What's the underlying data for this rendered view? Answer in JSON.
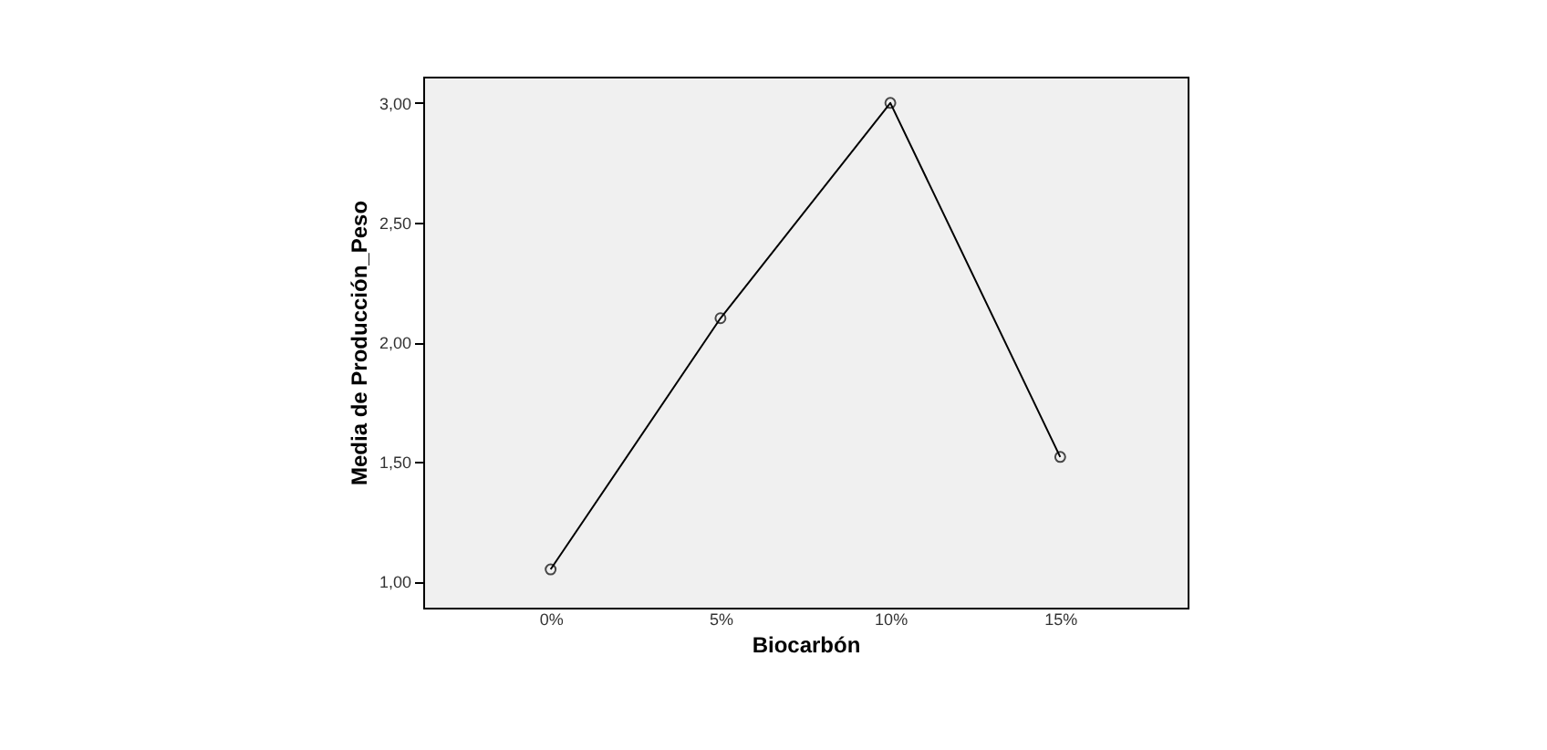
{
  "chart_data": {
    "type": "line",
    "xlabel": "Biocarbón",
    "ylabel": "Media de Producción_Peso",
    "categories": [
      "0%",
      "5%",
      "10%",
      "15%"
    ],
    "series": [
      {
        "color": "#000000",
        "values": [
          1.05,
          2.1,
          3.0,
          1.52
        ]
      }
    ],
    "ylim": [
      0.89,
      3.11
    ],
    "yticks": [
      {
        "value": 1,
        "label": "1,00"
      },
      {
        "value": 1.5,
        "label": "1,50"
      },
      {
        "value": 2,
        "label": "2,00"
      },
      {
        "value": 2.5,
        "label": "2,50"
      },
      {
        "value": 3,
        "label": "3,00"
      }
    ],
    "marker": "circle",
    "line_style": "solid",
    "grid": false
  }
}
